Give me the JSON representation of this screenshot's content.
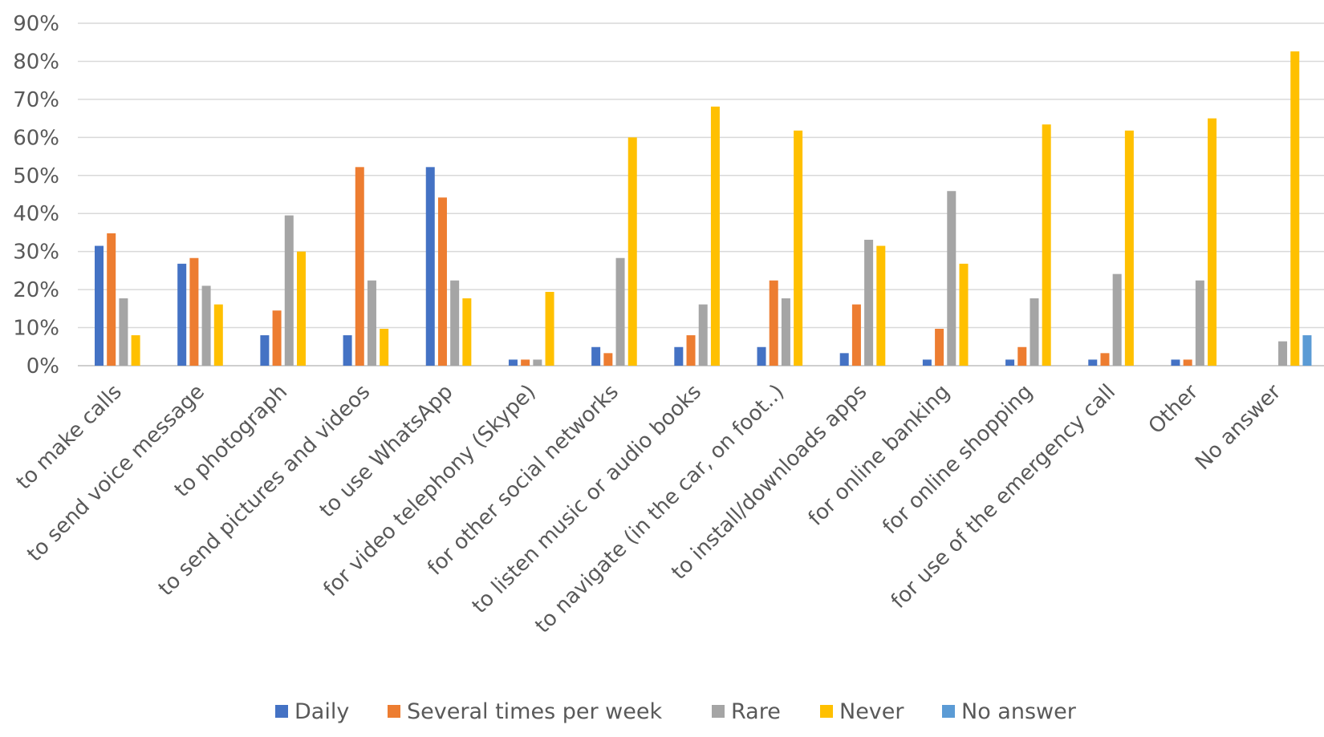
{
  "chart_data": {
    "type": "bar",
    "title": "",
    "xlabel": "",
    "ylabel": "",
    "ylim": [
      0,
      90
    ],
    "yticks": [
      0,
      10,
      20,
      30,
      40,
      50,
      60,
      70,
      80,
      90
    ],
    "ytick_format": "{v}%",
    "grid": true,
    "legend_position": "bottom",
    "categories": [
      "to make calls",
      "to send voice message",
      "to photograph",
      "to send pictures and videos",
      "to use WhatsApp",
      "for video telephony (Skype)",
      "for other social networks",
      "to listen music or audio books",
      "to navigate (in the car, on foot..)",
      "to install/downloads apps",
      "for online banking",
      "for online shopping",
      "for use of the emergency call",
      "Other",
      "No answer"
    ],
    "series": [
      {
        "name": "Daily",
        "color": "#4472C4",
        "values": [
          31.5,
          26.8,
          8.0,
          8.0,
          52.2,
          1.6,
          4.9,
          4.9,
          4.9,
          3.3,
          1.6,
          1.6,
          1.6,
          1.6,
          0
        ]
      },
      {
        "name": "Several times per week",
        "color": "#ED7D31",
        "values": [
          34.8,
          28.3,
          14.5,
          52.2,
          44.2,
          1.6,
          3.3,
          8.0,
          22.4,
          16.1,
          9.7,
          4.9,
          3.3,
          1.6,
          0
        ]
      },
      {
        "name": "Rare",
        "color": "#A5A5A5",
        "values": [
          17.7,
          21.0,
          39.5,
          22.4,
          22.4,
          1.6,
          28.3,
          16.1,
          17.7,
          33.1,
          45.9,
          17.7,
          24.1,
          22.4,
          6.4
        ]
      },
      {
        "name": "Never",
        "color": "#FFC000",
        "values": [
          8.0,
          16.1,
          30.0,
          9.7,
          17.7,
          19.4,
          60.0,
          68.1,
          61.8,
          31.5,
          26.8,
          63.4,
          61.8,
          65.0,
          82.6
        ]
      },
      {
        "name": "No answer",
        "color": "#5B9BD5",
        "values": [
          0,
          0,
          0,
          0,
          0,
          0,
          0,
          0,
          0,
          0,
          0,
          0,
          0,
          0,
          8.0
        ]
      }
    ]
  }
}
